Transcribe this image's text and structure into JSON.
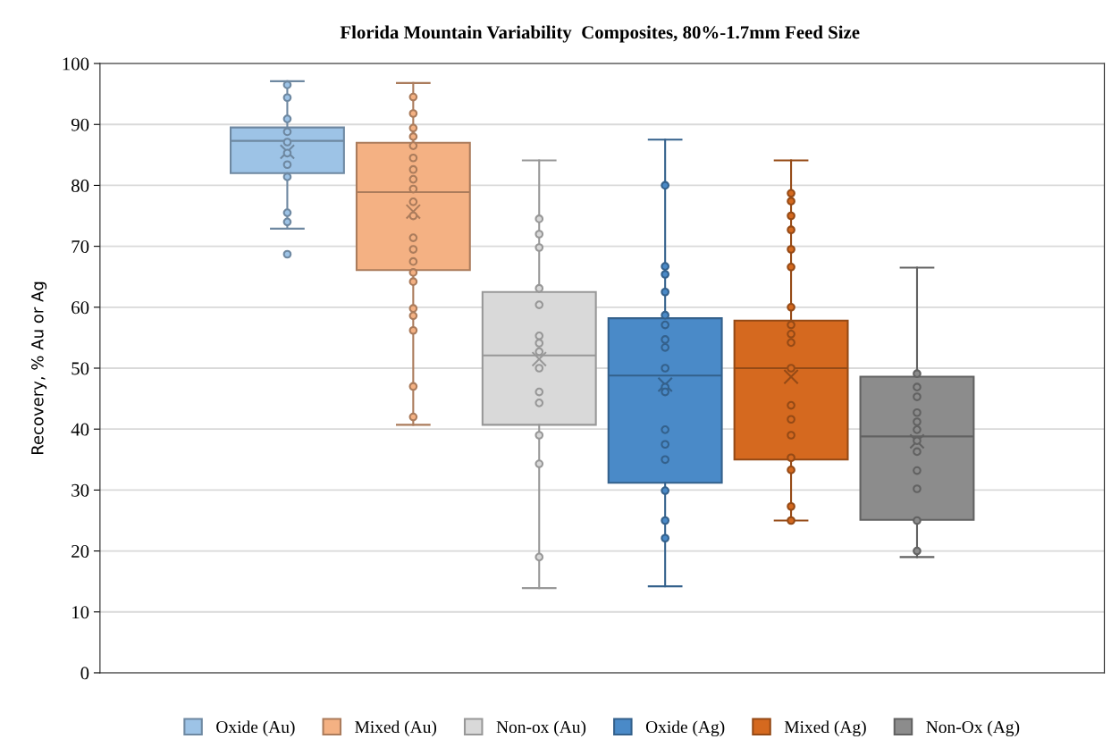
{
  "chart_data": {
    "type": "box",
    "title": "Florida Mountain Variability  Composites, 80%-1.7mm Feed Size",
    "ylabel": "Recovery, % Au or Ag",
    "categories": [
      null
    ],
    "ylim": [
      0,
      100
    ],
    "yticks": [
      0,
      10,
      20,
      30,
      40,
      50,
      60,
      70,
      80,
      90,
      100
    ],
    "grid": "y",
    "legend": "bottom",
    "marker": "circle",
    "series": [
      {
        "name": "Oxide (Au)",
        "color": "#9dc3e6",
        "boxes": [
          {
            "low": 72.9,
            "q1": 82.0,
            "median": 87.3,
            "q3": 89.5,
            "high": 97.1,
            "mean": 85.5,
            "outliers": [
              96.5,
              94.4,
              90.9,
              88.8,
              87.1,
              85.3,
              83.4,
              81.4,
              75.5,
              74.0,
              68.7
            ]
          }
        ]
      },
      {
        "name": "Mixed (Au)",
        "color": "#f4b183",
        "boxes": [
          {
            "low": 40.7,
            "q1": 66.1,
            "median": 78.9,
            "q3": 87.0,
            "high": 96.8,
            "mean": 75.7,
            "outliers": [
              94.5,
              91.8,
              89.4,
              88.0,
              86.5,
              84.5,
              82.6,
              81.0,
              79.4,
              77.3,
              75.0,
              71.4,
              69.5,
              67.5,
              65.7,
              64.2,
              59.8,
              58.6,
              56.2,
              47.0,
              42.0
            ]
          }
        ]
      },
      {
        "name": "Non-ox (Au)",
        "color": "#d9d9d9",
        "boxes": [
          {
            "low": 13.9,
            "q1": 40.7,
            "median": 52.1,
            "q3": 62.5,
            "high": 84.1,
            "mean": 51.5,
            "outliers": [
              74.5,
              72.0,
              69.8,
              63.1,
              60.4,
              55.3,
              54.1,
              52.7,
              50.0,
              46.1,
              44.3,
              39.0,
              34.3,
              19.0
            ]
          }
        ]
      },
      {
        "name": "Oxide (Ag)",
        "color": "#4a8ac8",
        "boxes": [
          {
            "low": 14.2,
            "q1": 31.2,
            "median": 48.8,
            "q3": 58.2,
            "high": 87.5,
            "mean": 47.3,
            "outliers": [
              80.0,
              66.7,
              65.4,
              62.5,
              58.7,
              57.1,
              54.7,
              53.4,
              50.0,
              46.9,
              46.1,
              39.9,
              37.5,
              35.0,
              29.9,
              25.0,
              22.1
            ]
          }
        ]
      },
      {
        "name": "Mixed (Ag)",
        "color": "#d5691f",
        "boxes": [
          {
            "low": 25.0,
            "q1": 35.0,
            "median": 50.0,
            "q3": 57.8,
            "high": 84.1,
            "mean": 48.6,
            "outliers": [
              78.7,
              77.4,
              75.0,
              72.7,
              69.5,
              66.6,
              60.0,
              57.1,
              55.6,
              54.2,
              50.0,
              43.9,
              41.6,
              39.0,
              35.3,
              33.3,
              27.3,
              25.0
            ]
          }
        ]
      },
      {
        "name": "Non-Ox (Ag)",
        "color": "#8c8c8c",
        "boxes": [
          {
            "low": 19.0,
            "q1": 25.1,
            "median": 38.8,
            "q3": 48.6,
            "high": 66.5,
            "mean": 38.0,
            "outliers": [
              49.1,
              46.9,
              45.3,
              42.7,
              41.2,
              39.9,
              38.1,
              36.3,
              33.2,
              30.2,
              25.0,
              20.0
            ]
          }
        ]
      }
    ]
  }
}
